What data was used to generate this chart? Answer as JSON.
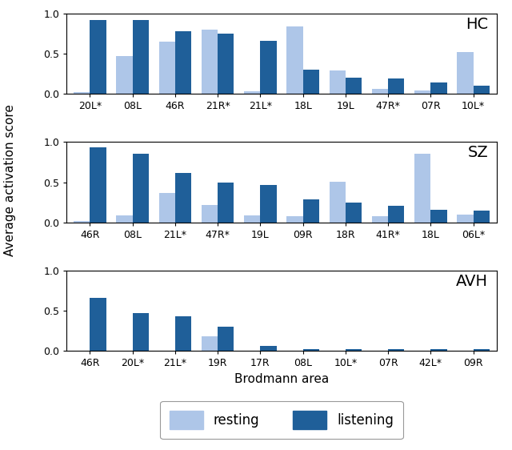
{
  "HC": {
    "labels": [
      "20L*",
      "08L",
      "46R",
      "21R*",
      "21L*",
      "18L",
      "19L",
      "47R*",
      "07R",
      "10L*"
    ],
    "resting": [
      0.02,
      0.47,
      0.65,
      0.8,
      0.03,
      0.84,
      0.29,
      0.06,
      0.04,
      0.52
    ],
    "listening": [
      0.92,
      0.92,
      0.78,
      0.75,
      0.66,
      0.3,
      0.2,
      0.19,
      0.14,
      0.1
    ]
  },
  "SZ": {
    "labels": [
      "46R",
      "08L",
      "21L*",
      "47R*",
      "19L",
      "09R",
      "18R",
      "41R*",
      "18L",
      "06L*"
    ],
    "resting": [
      0.02,
      0.09,
      0.37,
      0.22,
      0.09,
      0.08,
      0.51,
      0.08,
      0.85,
      0.1
    ],
    "listening": [
      0.93,
      0.85,
      0.62,
      0.5,
      0.47,
      0.29,
      0.25,
      0.21,
      0.16,
      0.15
    ]
  },
  "AVH": {
    "labels": [
      "46R",
      "20L*",
      "21L*",
      "19R",
      "17R",
      "08L",
      "10L*",
      "07R",
      "42L*",
      "09R"
    ],
    "resting": [
      0.0,
      0.0,
      0.0,
      0.18,
      0.0,
      0.0,
      0.0,
      0.0,
      0.0,
      0.0
    ],
    "listening": [
      0.66,
      0.47,
      0.43,
      0.3,
      0.06,
      0.02,
      0.02,
      0.02,
      0.02,
      0.02
    ]
  },
  "color_resting": "#aec6e8",
  "color_listening": "#1f5f99",
  "ylabel": "Average activation score",
  "xlabel": "Brodmann area",
  "legend_resting": "resting",
  "legend_listening": "listening",
  "groups": [
    "HC",
    "SZ",
    "AVH"
  ],
  "bar_width": 0.38,
  "ylim": [
    0.0,
    1.0
  ],
  "yticks": [
    0.0,
    0.5,
    1.0
  ],
  "group_label_fontsize": 14,
  "tick_fontsize": 9,
  "axis_label_fontsize": 11
}
